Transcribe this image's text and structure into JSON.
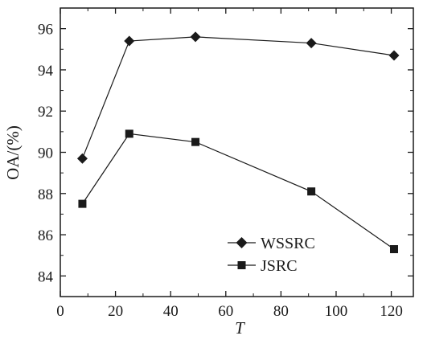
{
  "chart_data": {
    "type": "line",
    "xlabel": "T",
    "ylabel": "OA/(%)",
    "xlim": [
      0,
      128
    ],
    "ylim": [
      83,
      97
    ],
    "xticks": [
      0,
      20,
      40,
      60,
      80,
      100,
      120
    ],
    "yticks": [
      84,
      86,
      88,
      90,
      92,
      94,
      96
    ],
    "grid": false,
    "legend_position": "bottom-right",
    "series": [
      {
        "name": "WSSRC",
        "marker": "diamond",
        "color": "#1a1a1a",
        "x": [
          8,
          25,
          49,
          91,
          121
        ],
        "y": [
          89.7,
          95.4,
          95.6,
          95.3,
          94.7
        ]
      },
      {
        "name": "JSRC",
        "marker": "square",
        "color": "#1a1a1a",
        "x": [
          8,
          25,
          49,
          91,
          121
        ],
        "y": [
          87.5,
          90.9,
          90.5,
          88.1,
          85.3
        ]
      }
    ]
  }
}
